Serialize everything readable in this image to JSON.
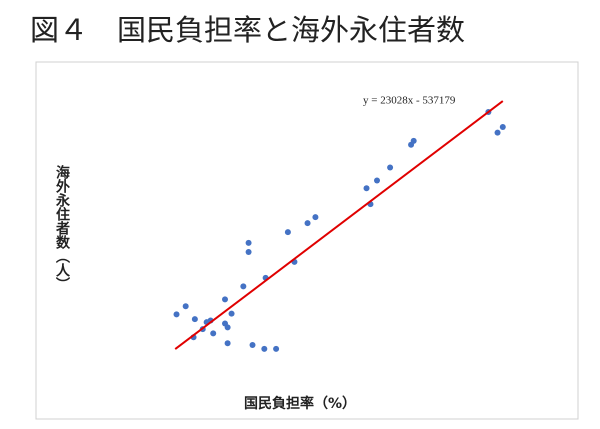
{
  "chart_data": {
    "type": "scatter",
    "title": "図４　国民負担率と海外永住者数",
    "x_label": "国民負担率（%）",
    "y_label": "海外永住者数（人）",
    "color": "#4472c4",
    "x": [
      25.1,
      25.8,
      26.5,
      26.4,
      27.1,
      27.4,
      27.7,
      27.9,
      28.8,
      28.8,
      29.0,
      29.0,
      29.3,
      30.2,
      30.6,
      30.6,
      30.9,
      31.8,
      32.7,
      31.9,
      33.6,
      34.1,
      35.1,
      35.7,
      39.6,
      39.9,
      40.4,
      41.4,
      43.0,
      43.2,
      48.9,
      49.6,
      50.0
    ],
    "values": [
      119000,
      138000,
      108000,
      66000,
      85000,
      101000,
      105000,
      75000,
      154000,
      98000,
      89000,
      52000,
      121000,
      184000,
      285000,
      264000,
      48000,
      39000,
      39000,
      204000,
      310000,
      241000,
      331000,
      345000,
      412000,
      375000,
      430000,
      460000,
      513000,
      522000,
      589000,
      541000,
      554000
    ],
    "xlim": [
      23,
      52
    ],
    "ylim": [
      -10000,
      640000
    ],
    "trendline": {
      "label": "y = 23028x - 537179",
      "slope": 23028,
      "intercept": -537179,
      "x_range": [
        25,
        50
      ],
      "color": "#e00000"
    }
  }
}
